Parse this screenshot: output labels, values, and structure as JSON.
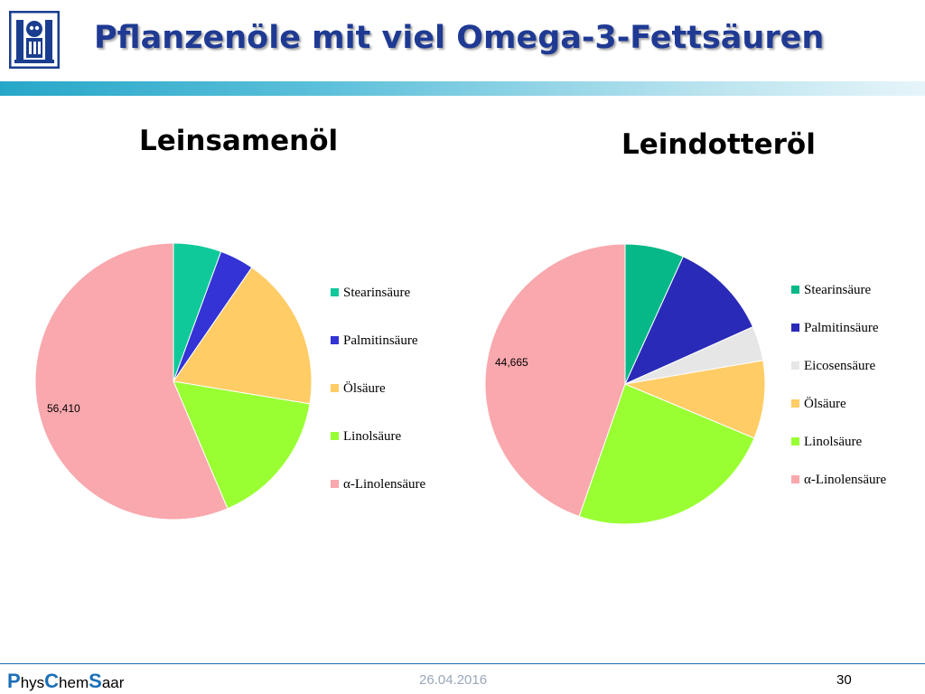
{
  "slide": {
    "title": "Pflanzenöle mit viel Omega-3-Fettsäuren",
    "footer_brand": [
      {
        "text": "P",
        "cap": true
      },
      {
        "text": "hys",
        "cap": false
      },
      {
        "text": "C",
        "cap": true
      },
      {
        "text": "hem",
        "cap": false
      },
      {
        "text": "S",
        "cap": true
      },
      {
        "text": "aar",
        "cap": false
      }
    ],
    "footer_date": "26.04.2016",
    "page_number": "30",
    "accent_color": "#1f3a93"
  },
  "chart_data": [
    {
      "type": "pie",
      "title": "Leinsamenöl",
      "categories": [
        "Stearinsäure",
        "Palmitinsäure",
        "Ölsäure",
        "Linolsäure",
        "α-Linolensäure"
      ],
      "values": [
        5.6,
        4.0,
        18.0,
        16.0,
        56.41
      ],
      "colors": [
        "#10c99a",
        "#3333d6",
        "#ffcc66",
        "#99ff33",
        "#f9a8ad"
      ],
      "data_labels": [
        {
          "series_index": 4,
          "text": "56,410"
        }
      ],
      "legend_position": "right"
    },
    {
      "type": "pie",
      "title": "Leindotteröl",
      "categories": [
        "Stearinsäure",
        "Palmitinsäure",
        "Eicosensäure",
        "Ölsäure",
        "Linolsäure",
        "α-Linolensäure"
      ],
      "values": [
        6.8,
        11.5,
        4.0,
        9.0,
        24.0,
        44.665
      ],
      "colors": [
        "#06b887",
        "#2a2ab8",
        "#e6e6e6",
        "#ffcc66",
        "#99ff33",
        "#f9a8ad"
      ],
      "data_labels": [
        {
          "series_index": 5,
          "text": "44,665"
        }
      ],
      "legend_position": "right"
    }
  ]
}
